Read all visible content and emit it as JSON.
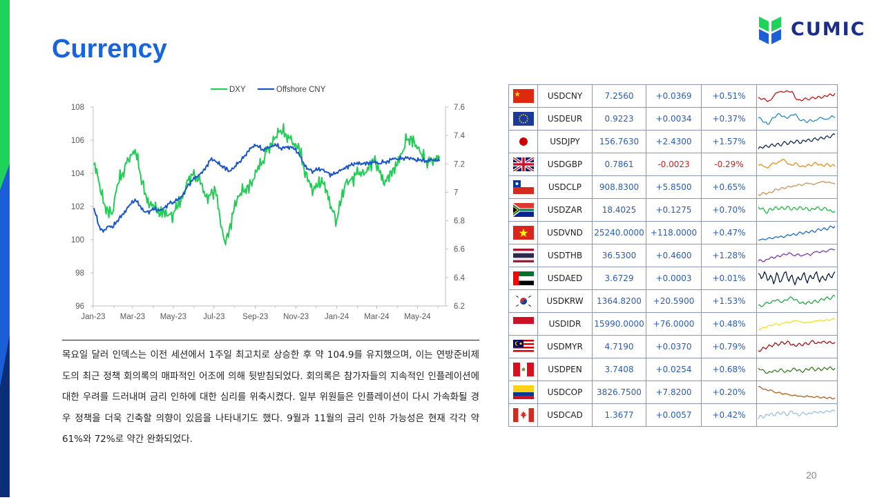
{
  "title": "Currency",
  "logo": {
    "text": "CUMIC"
  },
  "page_number": "20",
  "colors": {
    "title": "#1565e0",
    "dxy": "#22cc55",
    "cny": "#1a56c8",
    "positive": "#2b5cb8",
    "negative": "#d02020",
    "logo_text": "#1a2e8a"
  },
  "chart_data": {
    "type": "line",
    "xlabel": "",
    "ylabel": "",
    "x_tick_labels": [
      "Jan-23",
      "Mar-23",
      "May-23",
      "Jul-23",
      "Sep-23",
      "Nov-23",
      "Jan-24",
      "Mar-24",
      "May-24"
    ],
    "ylim_left": [
      96,
      108
    ],
    "yticks_left": [
      "96",
      "98",
      "100",
      "102",
      "104",
      "106",
      "108"
    ],
    "ylim_right": [
      6.2,
      7.6
    ],
    "yticks_right": [
      "6.2",
      "6.4",
      "6.6",
      "6.8",
      "7",
      "7.2",
      "7.4",
      "7.6"
    ],
    "legend_position": "top-center",
    "grid": false,
    "series": [
      {
        "name": "DXY",
        "axis": "left",
        "color": "#22cc55",
        "x": [
          "2023-01-02",
          "2023-01-09",
          "2023-01-16",
          "2023-01-23",
          "2023-01-30",
          "2023-02-06",
          "2023-02-13",
          "2023-02-20",
          "2023-02-27",
          "2023-03-06",
          "2023-03-13",
          "2023-03-20",
          "2023-03-27",
          "2023-04-03",
          "2023-04-10",
          "2023-04-17",
          "2023-04-24",
          "2023-05-01",
          "2023-05-08",
          "2023-05-15",
          "2023-05-22",
          "2023-05-29",
          "2023-06-05",
          "2023-06-12",
          "2023-06-19",
          "2023-06-26",
          "2023-07-03",
          "2023-07-10",
          "2023-07-17",
          "2023-07-24",
          "2023-07-31",
          "2023-08-07",
          "2023-08-14",
          "2023-08-21",
          "2023-08-28",
          "2023-09-04",
          "2023-09-11",
          "2023-09-18",
          "2023-09-25",
          "2023-10-02",
          "2023-10-09",
          "2023-10-16",
          "2023-10-23",
          "2023-10-30",
          "2023-11-06",
          "2023-11-13",
          "2023-11-20",
          "2023-11-27",
          "2023-12-04",
          "2023-12-11",
          "2023-12-18",
          "2023-12-25",
          "2024-01-01",
          "2024-01-08",
          "2024-01-15",
          "2024-01-22",
          "2024-01-29",
          "2024-02-05",
          "2024-02-12",
          "2024-02-19",
          "2024-02-26",
          "2024-03-04",
          "2024-03-11",
          "2024-03-18",
          "2024-03-25",
          "2024-04-01",
          "2024-04-08",
          "2024-04-15",
          "2024-04-22",
          "2024-04-29",
          "2024-05-06",
          "2024-05-13",
          "2024-05-20",
          "2024-05-27",
          "2024-06-03"
        ],
        "values": [
          104.5,
          103.6,
          102.2,
          101.8,
          101.6,
          103.3,
          103.9,
          104.6,
          105.1,
          105.2,
          103.9,
          102.8,
          102.1,
          101.9,
          101.4,
          101.8,
          101.5,
          101.6,
          102.0,
          102.5,
          103.6,
          103.9,
          103.8,
          103.4,
          102.6,
          102.7,
          103.0,
          101.3,
          99.9,
          100.7,
          101.8,
          102.6,
          102.9,
          103.3,
          103.6,
          104.2,
          104.6,
          105.3,
          105.8,
          106.2,
          106.6,
          106.4,
          106.1,
          105.6,
          105.4,
          104.3,
          103.6,
          103.0,
          103.2,
          103.4,
          102.9,
          101.8,
          101.2,
          102.4,
          103.5,
          103.6,
          103.9,
          104.1,
          104.0,
          104.6,
          104.8,
          104.2,
          103.4,
          103.9,
          104.3,
          104.5,
          105.2,
          106.0,
          106.2,
          105.7,
          105.2,
          104.7,
          104.7,
          104.8,
          104.9
        ]
      },
      {
        "name": "Offshore CNY",
        "axis": "right",
        "color": "#1a56c8",
        "x": [
          "2023-01-02",
          "2023-01-09",
          "2023-01-16",
          "2023-01-23",
          "2023-01-30",
          "2023-02-06",
          "2023-02-13",
          "2023-02-20",
          "2023-02-27",
          "2023-03-06",
          "2023-03-13",
          "2023-03-20",
          "2023-03-27",
          "2023-04-03",
          "2023-04-10",
          "2023-04-17",
          "2023-04-24",
          "2023-05-01",
          "2023-05-08",
          "2023-05-15",
          "2023-05-22",
          "2023-05-29",
          "2023-06-05",
          "2023-06-12",
          "2023-06-19",
          "2023-06-26",
          "2023-07-03",
          "2023-07-10",
          "2023-07-17",
          "2023-07-24",
          "2023-07-31",
          "2023-08-07",
          "2023-08-14",
          "2023-08-21",
          "2023-08-28",
          "2023-09-04",
          "2023-09-11",
          "2023-09-18",
          "2023-09-25",
          "2023-10-02",
          "2023-10-09",
          "2023-10-16",
          "2023-10-23",
          "2023-10-30",
          "2023-11-06",
          "2023-11-13",
          "2023-11-20",
          "2023-11-27",
          "2023-12-04",
          "2023-12-11",
          "2023-12-18",
          "2023-12-25",
          "2024-01-01",
          "2024-01-08",
          "2024-01-15",
          "2024-01-22",
          "2024-01-29",
          "2024-02-05",
          "2024-02-12",
          "2024-02-19",
          "2024-02-26",
          "2024-03-04",
          "2024-03-11",
          "2024-03-18",
          "2024-03-25",
          "2024-04-01",
          "2024-04-08",
          "2024-04-15",
          "2024-04-22",
          "2024-04-29",
          "2024-05-06",
          "2024-05-13",
          "2024-05-20",
          "2024-05-27",
          "2024-06-03"
        ],
        "values": [
          6.89,
          6.77,
          6.72,
          6.76,
          6.75,
          6.8,
          6.84,
          6.88,
          6.92,
          6.94,
          6.9,
          6.86,
          6.87,
          6.88,
          6.87,
          6.89,
          6.92,
          6.93,
          6.95,
          6.98,
          7.04,
          7.08,
          7.11,
          7.14,
          7.18,
          7.23,
          7.22,
          7.19,
          7.18,
          7.15,
          7.17,
          7.21,
          7.24,
          7.29,
          7.32,
          7.33,
          7.3,
          7.31,
          7.32,
          7.33,
          7.31,
          7.32,
          7.32,
          7.3,
          7.26,
          7.2,
          7.16,
          7.15,
          7.16,
          7.16,
          7.14,
          7.12,
          7.14,
          7.16,
          7.18,
          7.19,
          7.2,
          7.2,
          7.21,
          7.21,
          7.21,
          7.2,
          7.21,
          7.22,
          7.24,
          7.23,
          7.24,
          7.24,
          7.24,
          7.22,
          7.23,
          7.22,
          7.23,
          7.22,
          7.22
        ]
      }
    ]
  },
  "commentary": "목요일 달러 인덱스는 이전 세션에서 1주일 최고치로 상승한 후 약 104.9를 유지했으며, 이는 연방준비제도의 최근 정책 회의록의 매파적인 어조에 의해 뒷받침되었다. 회의록은 참가자들의 지속적인 인플레이션에 대한 우려를 드러내며 금리 인하에 대한 심리를 위축시켰다. 일부 위원들은 인플레이션이 다시 가속화될 경우 정책을 더욱 긴축할 의향이 있음을 나타내기도 했다. 9월과 11월의 금리 인하 가능성은 현재 각각 약 61%와 72%로 약간 완화되었다.",
  "currencies": [
    {
      "flag": "china-flag",
      "pair": "USDCNY",
      "price": "7.2560",
      "change": "+0.0369",
      "pct": "+0.51%",
      "trend": "up",
      "spark_color": "#cc1111",
      "spark": [
        0.45,
        0.32,
        0.38,
        0.2,
        0.28,
        0.52,
        0.72,
        0.78,
        0.74,
        0.81,
        0.76,
        0.79,
        0.42,
        0.3,
        0.25,
        0.38,
        0.33,
        0.36,
        0.44,
        0.4,
        0.48,
        0.43,
        0.52,
        0.6,
        0.55,
        0.68
      ]
    },
    {
      "flag": "eu-flag",
      "pair": "USDEUR",
      "price": "0.9223",
      "change": "+0.0034",
      "pct": "+0.37%",
      "trend": "up",
      "spark_color": "#2a8ac8",
      "spark": [
        0.55,
        0.5,
        0.32,
        0.2,
        0.38,
        0.6,
        0.72,
        0.8,
        0.66,
        0.58,
        0.62,
        0.74,
        0.8,
        0.56,
        0.4,
        0.46,
        0.3,
        0.48,
        0.36,
        0.44,
        0.6,
        0.54,
        0.48,
        0.52,
        0.7,
        0.58
      ]
    },
    {
      "flag": "japan-flag",
      "pair": "USDJPY",
      "price": "156.7630",
      "change": "+2.4300",
      "pct": "+1.57%",
      "trend": "up",
      "spark_color": "#0e2a5a",
      "spark": [
        0.1,
        0.18,
        0.25,
        0.22,
        0.32,
        0.28,
        0.38,
        0.3,
        0.42,
        0.46,
        0.4,
        0.52,
        0.48,
        0.56,
        0.44,
        0.58,
        0.62,
        0.55,
        0.68,
        0.64,
        0.72,
        0.7,
        0.8,
        0.76,
        0.88,
        0.92
      ]
    },
    {
      "flag": "uk-flag",
      "pair": "USDGBP",
      "price": "0.7861",
      "change": "-0.0023",
      "pct": "-0.29%",
      "trend": "down",
      "spark_color": "#e8901a",
      "spark": [
        0.45,
        0.52,
        0.38,
        0.3,
        0.48,
        0.62,
        0.55,
        0.7,
        0.82,
        0.68,
        0.52,
        0.46,
        0.6,
        0.48,
        0.4,
        0.38,
        0.5,
        0.44,
        0.56,
        0.58,
        0.5,
        0.44,
        0.52,
        0.48,
        0.46,
        0.4
      ]
    },
    {
      "flag": "chile-flag",
      "pair": "USDCLP",
      "price": "908.8300",
      "change": "+5.8500",
      "pct": "+0.65%",
      "trend": "up",
      "spark_color": "#c8925a",
      "spark": [
        0.1,
        0.12,
        0.18,
        0.15,
        0.22,
        0.3,
        0.42,
        0.38,
        0.5,
        0.46,
        0.58,
        0.54,
        0.6,
        0.68,
        0.62,
        0.7,
        0.76,
        0.72,
        0.66,
        0.74,
        0.8,
        0.86,
        0.78,
        0.82,
        0.76,
        0.7
      ]
    },
    {
      "flag": "south-africa-flag",
      "pair": "USDZAR",
      "price": "18.4025",
      "change": "+0.1275",
      "pct": "+0.70%",
      "trend": "up",
      "spark_color": "#22bb44",
      "spark": [
        0.7,
        0.6,
        0.5,
        0.35,
        0.62,
        0.55,
        0.68,
        0.58,
        0.66,
        0.6,
        0.7,
        0.52,
        0.64,
        0.58,
        0.68,
        0.56,
        0.62,
        0.5,
        0.58,
        0.66,
        0.6,
        0.54,
        0.64,
        0.5,
        0.42,
        0.46
      ]
    },
    {
      "flag": "vietnam-flag",
      "pair": "USDVND",
      "price": "25240.0000",
      "change": "+118.0000",
      "pct": "+0.47%",
      "trend": "up",
      "spark_color": "#1a6ad0",
      "spark": [
        0.1,
        0.14,
        0.12,
        0.18,
        0.22,
        0.2,
        0.28,
        0.3,
        0.26,
        0.34,
        0.38,
        0.42,
        0.4,
        0.48,
        0.52,
        0.5,
        0.56,
        0.6,
        0.58,
        0.66,
        0.7,
        0.74,
        0.72,
        0.8,
        0.86,
        0.9
      ]
    },
    {
      "flag": "thailand-flag",
      "pair": "USDTHB",
      "price": "36.5300",
      "change": "+0.4600",
      "pct": "+1.28%",
      "trend": "up",
      "spark_color": "#7a3aa8",
      "spark": [
        0.2,
        0.25,
        0.18,
        0.3,
        0.42,
        0.36,
        0.5,
        0.45,
        0.6,
        0.55,
        0.68,
        0.58,
        0.5,
        0.62,
        0.48,
        0.56,
        0.64,
        0.52,
        0.7,
        0.76,
        0.68,
        0.8,
        0.72,
        0.84,
        0.9,
        0.86
      ]
    },
    {
      "flag": "uae-flag",
      "pair": "USDAED",
      "price": "3.6729",
      "change": "+0.0003",
      "pct": "+0.01%",
      "trend": "up",
      "spark_color": "#0a1a40",
      "spark": [
        0.8,
        0.5,
        0.9,
        0.4,
        0.7,
        0.2,
        0.85,
        0.3,
        0.6,
        0.9,
        0.35,
        0.7,
        0.15,
        0.6,
        0.45,
        0.85,
        0.25,
        0.7,
        0.5,
        0.9,
        0.3,
        0.65,
        0.4,
        0.8,
        0.55,
        0.9
      ]
    },
    {
      "flag": "korea-flag",
      "pair": "USDKRW",
      "price": "1364.8200",
      "change": "+20.5900",
      "pct": "+1.53%",
      "trend": "up",
      "spark_color": "#22aa44",
      "spark": [
        0.3,
        0.2,
        0.35,
        0.45,
        0.4,
        0.55,
        0.6,
        0.5,
        0.48,
        0.58,
        0.68,
        0.72,
        0.6,
        0.5,
        0.42,
        0.38,
        0.46,
        0.4,
        0.52,
        0.48,
        0.56,
        0.62,
        0.7,
        0.66,
        0.74,
        0.8
      ]
    },
    {
      "flag": "indonesia-flag",
      "pair": "USDIDR",
      "price": "15990.0000",
      "change": "+76.0000",
      "pct": "+0.48%",
      "trend": "up",
      "spark_color": "#f0e020",
      "spark": [
        0.2,
        0.25,
        0.3,
        0.38,
        0.42,
        0.48,
        0.52,
        0.46,
        0.55,
        0.62,
        0.58,
        0.66,
        0.72,
        0.68,
        0.64,
        0.58,
        0.62,
        0.6,
        0.66,
        0.7,
        0.74,
        0.68,
        0.76,
        0.72,
        0.8,
        0.78
      ]
    },
    {
      "flag": "malaysia-flag",
      "pair": "USDMYR",
      "price": "4.7190",
      "change": "+0.0370",
      "pct": "+0.79%",
      "trend": "up",
      "spark_color": "#aa1010",
      "spark": [
        0.3,
        0.35,
        0.45,
        0.5,
        0.58,
        0.62,
        0.7,
        0.66,
        0.78,
        0.72,
        0.8,
        0.62,
        0.56,
        0.68,
        0.6,
        0.72,
        0.66,
        0.78,
        0.84,
        0.7,
        0.76,
        0.82,
        0.74,
        0.8,
        0.72,
        0.78
      ]
    },
    {
      "flag": "peru-flag",
      "pair": "USDPEN",
      "price": "3.7408",
      "change": "+0.0254",
      "pct": "+0.68%",
      "trend": "up",
      "spark_color": "#3a7a20",
      "spark": [
        0.6,
        0.5,
        0.42,
        0.3,
        0.38,
        0.45,
        0.4,
        0.52,
        0.46,
        0.38,
        0.44,
        0.5,
        0.56,
        0.48,
        0.4,
        0.46,
        0.52,
        0.6,
        0.55,
        0.5,
        0.56,
        0.52,
        0.58,
        0.62,
        0.56,
        0.6
      ]
    },
    {
      "flag": "colombia-flag",
      "pair": "USDCOP",
      "price": "3826.7500",
      "change": "+7.8200",
      "pct": "+0.20%",
      "trend": "up",
      "spark_color": "#b85a1a",
      "spark": [
        0.85,
        0.78,
        0.7,
        0.62,
        0.66,
        0.55,
        0.48,
        0.52,
        0.4,
        0.45,
        0.38,
        0.32,
        0.36,
        0.28,
        0.3,
        0.24,
        0.32,
        0.26,
        0.22,
        0.28,
        0.2,
        0.24,
        0.18,
        0.22,
        0.15,
        0.2
      ]
    },
    {
      "flag": "canada-flag",
      "pair": "USDCAD",
      "price": "1.3677",
      "change": "+0.0057",
      "pct": "+0.42%",
      "trend": "up",
      "spark_color": "#9ec0e0",
      "spark": [
        0.3,
        0.5,
        0.38,
        0.55,
        0.6,
        0.48,
        0.66,
        0.58,
        0.7,
        0.52,
        0.62,
        0.74,
        0.6,
        0.5,
        0.58,
        0.64,
        0.56,
        0.62,
        0.7,
        0.66,
        0.72,
        0.64,
        0.76,
        0.7,
        0.8,
        0.74
      ]
    }
  ]
}
